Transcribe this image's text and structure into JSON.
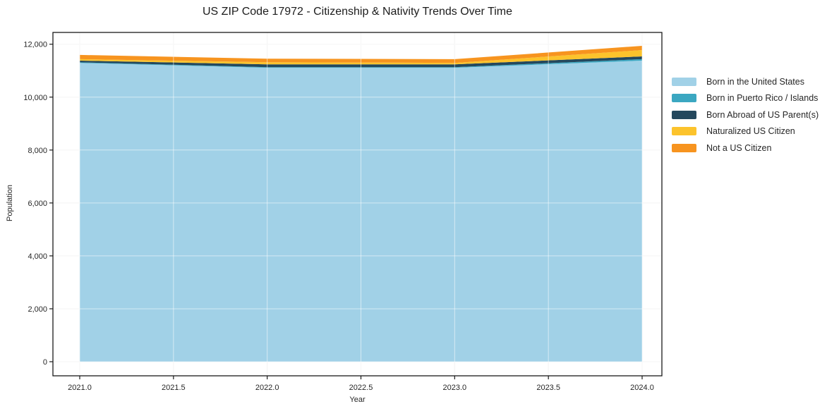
{
  "chart_data": {
    "type": "area",
    "stacked": true,
    "title": "US ZIP Code 17972 - Citizenship & Nativity Trends Over Time",
    "xlabel": "Year",
    "ylabel": "Population",
    "grid": true,
    "legend_position": "right-outside",
    "x": [
      2021,
      2022,
      2023,
      2024
    ],
    "xticks": [
      2021.0,
      2021.5,
      2022.0,
      2022.5,
      2023.0,
      2023.5,
      2024.0
    ],
    "xticklabels": [
      "2021.0",
      "2021.5",
      "2022.0",
      "2022.5",
      "2023.0",
      "2023.5",
      "2024.0"
    ],
    "yticks": [
      0,
      2000,
      4000,
      6000,
      8000,
      10000,
      12000
    ],
    "yticklabels": [
      "0",
      "2,000",
      "4,000",
      "6,000",
      "8,000",
      "10,000",
      "12,000"
    ],
    "ylim": [
      0,
      12000
    ],
    "series": [
      {
        "name": "Born in the United States",
        "color": "#a1d1e7",
        "values": [
          11290,
          11110,
          11110,
          11380
        ]
      },
      {
        "name": "Born in Puerto Rico / Islands",
        "color": "#3ba7c1",
        "values": [
          25,
          25,
          25,
          55
        ]
      },
      {
        "name": "Born Abroad of US Parent(s)",
        "color": "#24485d",
        "values": [
          65,
          105,
          105,
          105
        ]
      },
      {
        "name": "Naturalized US Citizen",
        "color": "#fcc32c",
        "values": [
          55,
          80,
          55,
          240
        ]
      },
      {
        "name": "Not a US Citizen",
        "color": "#f7941f",
        "values": [
          160,
          135,
          140,
          160
        ]
      }
    ],
    "series_totals": [
      11595,
      11455,
      11435,
      11940
    ],
    "colors": {
      "plot_border": "#1a1a1a",
      "tick_text": "#262626",
      "gridline_under": "#ececec",
      "gridline_over": "rgba(255,255,255,0.55)"
    }
  }
}
